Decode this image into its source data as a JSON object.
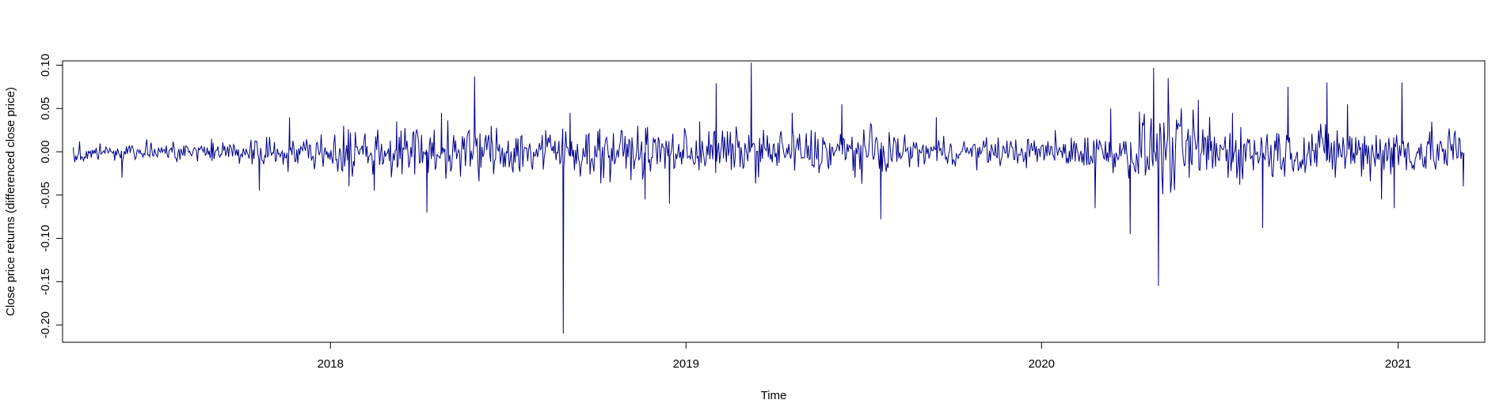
{
  "chart_data": {
    "type": "line",
    "title": "",
    "xlabel": "Time",
    "ylabel": "Close price returns (differenced close price)",
    "series_color": "#00008B",
    "xlim": [
      "2017-04-01",
      "2021-03-31"
    ],
    "ylim": [
      -0.22,
      0.105
    ],
    "x_ticks": [
      {
        "value": "2018-01-01",
        "label": "2018"
      },
      {
        "value": "2019-01-01",
        "label": "2019"
      },
      {
        "value": "2020-01-01",
        "label": "2020"
      },
      {
        "value": "2021-01-01",
        "label": "2021"
      }
    ],
    "y_ticks": [
      {
        "value": 0.1,
        "label": "0.10"
      },
      {
        "value": 0.05,
        "label": "0.05"
      },
      {
        "value": 0.0,
        "label": "0.00"
      },
      {
        "value": -0.05,
        "label": "-0.05"
      },
      {
        "value": -0.1,
        "label": "-0.10"
      },
      {
        "value": -0.15,
        "label": "-0.15"
      },
      {
        "value": -0.2,
        "label": "-0.20"
      }
    ],
    "grid": false,
    "legend": "none",
    "series": [
      {
        "x": [
          "2017-04-12",
          "2017-06-01",
          "2017-07-01",
          "2017-09-01",
          "2017-10-20",
          "2017-11-20",
          "2018-01-20",
          "2018-02-15",
          "2018-03-10",
          "2018-04-10",
          "2018-04-25",
          "2018-05-29",
          "2018-06-15",
          "2018-08-10",
          "2018-08-28",
          "2018-09-04",
          "2018-10-15",
          "2018-11-20",
          "2018-12-15",
          "2019-01-15",
          "2019-02-01",
          "2019-03-09",
          "2019-04-20",
          "2019-06-10",
          "2019-07-20",
          "2019-09-15",
          "2020-01-15",
          "2020-02-25",
          "2020-03-12",
          "2020-04-01",
          "2020-04-25",
          "2020-04-30",
          "2020-05-10",
          "2020-06-10",
          "2020-07-15",
          "2020-08-15",
          "2020-09-10",
          "2020-10-20",
          "2020-11-10",
          "2020-12-15",
          "2020-12-28",
          "2021-01-05",
          "2021-03-09"
        ],
        "values": [
          0.005,
          -0.03,
          0.01,
          0.015,
          -0.045,
          0.04,
          -0.04,
          -0.045,
          0.035,
          -0.07,
          0.045,
          0.087,
          0.03,
          0.025,
          -0.21,
          0.045,
          -0.035,
          -0.055,
          -0.06,
          0.035,
          0.079,
          0.103,
          0.045,
          0.055,
          -0.078,
          0.04,
          0.025,
          -0.065,
          0.05,
          -0.095,
          0.097,
          -0.155,
          0.085,
          0.06,
          0.045,
          -0.088,
          0.075,
          0.08,
          0.055,
          -0.055,
          -0.065,
          0.08,
          -0.04
        ]
      }
    ]
  }
}
